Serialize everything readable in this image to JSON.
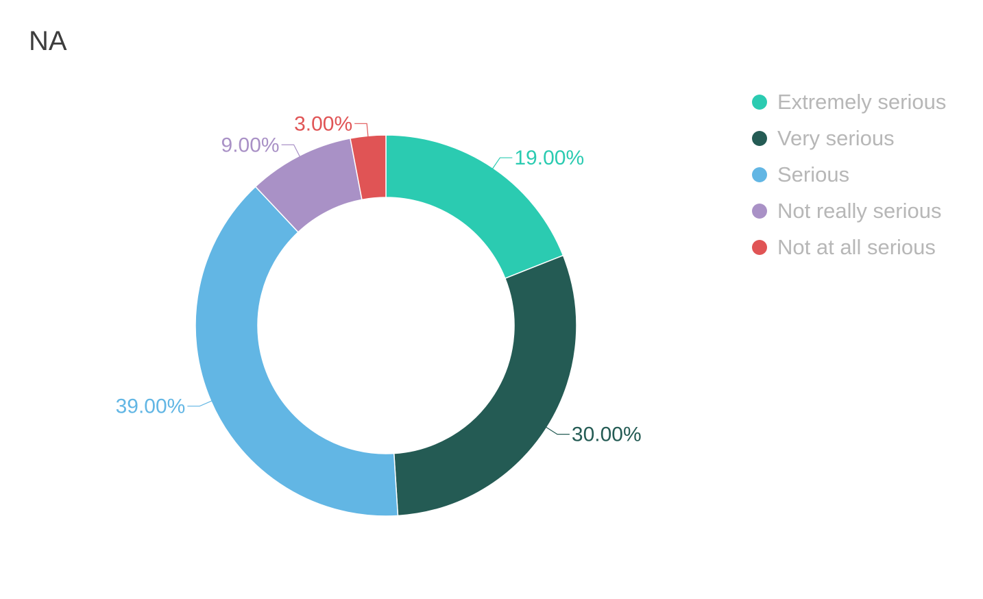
{
  "chart_data": {
    "type": "pie",
    "title": "NA",
    "subtitle": "",
    "donut": true,
    "value_format": "percent_2dp",
    "legend_position": "right",
    "categories": [
      "Extremely serious",
      "Very serious",
      "Serious",
      "Not really serious",
      "Not at all serious"
    ],
    "values": [
      19.0,
      30.0,
      39.0,
      9.0,
      3.0
    ],
    "data_labels": [
      "19.00%",
      "30.00%",
      "39.00%",
      "9.00%",
      "3.00%"
    ],
    "colors": [
      "#2bcbb1",
      "#245b54",
      "#62b6e4",
      "#a991c6",
      "#e05455"
    ]
  }
}
